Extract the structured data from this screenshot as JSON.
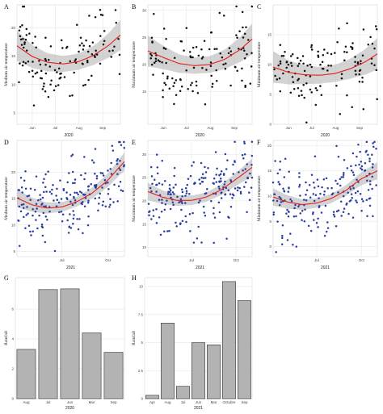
{
  "colors": {
    "point_2020": "#111111",
    "point_2021": "#2a3f9e",
    "fit_line": "#e02020",
    "band": "#b5b5b5",
    "bar_fill": "#b3b3b3",
    "bar_edge": "#333333",
    "grid": "#e6e6e6"
  },
  "chart_data": [
    {
      "panel": "A",
      "type": "scatter",
      "xlabel": "2020",
      "ylabel": "Medium air temperature",
      "xticks": [
        {
          "label": "Jun",
          "x": 20
        },
        {
          "label": "Jul",
          "x": 50
        },
        {
          "label": "Aug",
          "x": 81
        },
        {
          "label": "Sep",
          "x": 112
        }
      ],
      "xlim": [
        0,
        135
      ],
      "ylim": [
        3,
        24
      ],
      "yticks": [
        5,
        10,
        15,
        20
      ],
      "fit": {
        "x": [
          0,
          20,
          40,
          60,
          80,
          100,
          120,
          135
        ],
        "y": [
          16.8,
          14.9,
          13.9,
          13.6,
          14.0,
          15.1,
          16.9,
          18.7
        ],
        "se": 1.4
      },
      "point_color": "point_2020",
      "seed": 11,
      "n": 120
    },
    {
      "panel": "B",
      "type": "scatter",
      "xlabel": "2020",
      "ylabel": "Maximum air temperature",
      "xticks": [
        {
          "label": "Jun",
          "x": 20
        },
        {
          "label": "Jul",
          "x": 50
        },
        {
          "label": "Aug",
          "x": 81
        },
        {
          "label": "Sep",
          "x": 112
        }
      ],
      "xlim": [
        0,
        135
      ],
      "ylim": [
        9,
        31
      ],
      "yticks": [
        15,
        20,
        25,
        30
      ],
      "fit": {
        "x": [
          0,
          20,
          40,
          60,
          80,
          100,
          120,
          135
        ],
        "y": [
          22.5,
          21.3,
          20.2,
          19.8,
          20.0,
          21.0,
          22.8,
          24.7
        ],
        "se": 1.5
      },
      "point_color": "point_2020",
      "seed": 23,
      "n": 120
    },
    {
      "panel": "C",
      "type": "scatter",
      "xlabel": "2020",
      "ylabel": "Minimum air temperature",
      "xticks": [
        {
          "label": "Jun",
          "x": 20
        },
        {
          "label": "Jul",
          "x": 50
        },
        {
          "label": "Aug",
          "x": 81
        },
        {
          "label": "Sep",
          "x": 112
        }
      ],
      "xlim": [
        0,
        135
      ],
      "ylim": [
        0,
        20
      ],
      "yticks": [
        0,
        5,
        10,
        15
      ],
      "fit": {
        "x": [
          0,
          20,
          40,
          60,
          80,
          100,
          120,
          135
        ],
        "y": [
          9.6,
          8.7,
          8.3,
          8.2,
          8.5,
          9.3,
          10.5,
          11.8
        ],
        "se": 1.4
      },
      "point_color": "point_2020",
      "seed": 37,
      "n": 120
    },
    {
      "panel": "D",
      "type": "scatter",
      "xlabel": "2021",
      "ylabel": "Medium air temperature",
      "xticks": [
        {
          "label": "Jul",
          "x": 90
        },
        {
          "label": "Oct",
          "x": 182
        }
      ],
      "xlim": [
        0,
        215
      ],
      "ylim": [
        4,
        26
      ],
      "yticks": [
        5,
        10,
        15,
        20
      ],
      "fit": {
        "x": [
          0,
          30,
          60,
          90,
          120,
          150,
          180,
          215
        ],
        "y": [
          15.1,
          13.8,
          13.2,
          13.4,
          14.4,
          16.0,
          18.3,
          22.0
        ],
        "se": 0.9
      },
      "point_color": "point_2021",
      "seed": 41,
      "n": 200
    },
    {
      "panel": "E",
      "type": "scatter",
      "xlabel": "2021",
      "ylabel": "Maximum air temperature",
      "xticks": [
        {
          "label": "Jul",
          "x": 90
        },
        {
          "label": "Oct",
          "x": 182
        }
      ],
      "xlim": [
        0,
        215
      ],
      "ylim": [
        8,
        33
      ],
      "yticks": [
        10,
        15,
        20,
        25,
        30
      ],
      "fit": {
        "x": [
          0,
          30,
          60,
          90,
          120,
          150,
          180,
          215
        ],
        "y": [
          22.0,
          20.8,
          20.1,
          20.1,
          20.8,
          22.3,
          24.5,
          27.2
        ],
        "se": 1.0
      },
      "point_color": "point_2021",
      "seed": 53,
      "n": 200
    },
    {
      "panel": "F",
      "type": "scatter",
      "xlabel": "2021",
      "ylabel": "Minimum air temperature",
      "xticks": [
        {
          "label": "Jul",
          "x": 90
        },
        {
          "label": "Oct",
          "x": 182
        }
      ],
      "xlim": [
        0,
        215
      ],
      "ylim": [
        -2,
        21
      ],
      "yticks": [
        0,
        5,
        10,
        15,
        20
      ],
      "fit": {
        "x": [
          0,
          30,
          60,
          90,
          120,
          150,
          180,
          215
        ],
        "y": [
          9.8,
          8.8,
          8.3,
          8.6,
          9.5,
          11.1,
          13.3,
          15.0
        ],
        "se": 0.9
      },
      "point_color": "point_2021",
      "seed": 67,
      "n": 200
    },
    {
      "panel": "G",
      "type": "bar",
      "xlabel": "2020",
      "ylabel": "Rainfall",
      "categories": [
        "Aug",
        "Jul",
        "Jun",
        "Mar",
        "Sep"
      ],
      "values": [
        3.3,
        7.3,
        7.35,
        4.4,
        3.1
      ],
      "ylim": [
        0,
        8.1
      ],
      "yticks": [
        0,
        2,
        4,
        6
      ]
    },
    {
      "panel": "H",
      "type": "bar",
      "xlabel": "2021",
      "ylabel": "Rainfall",
      "categories": [
        "Apr",
        "Aug",
        "Jul",
        "Jun",
        "Mar",
        "Octubre",
        "Sep"
      ],
      "values": [
        0.3,
        6.75,
        1.1,
        5.0,
        4.8,
        10.45,
        8.75
      ],
      "ylim": [
        0,
        10.8
      ],
      "yticks": [
        0.0,
        2.5,
        5.0,
        7.5,
        10.0
      ]
    }
  ]
}
